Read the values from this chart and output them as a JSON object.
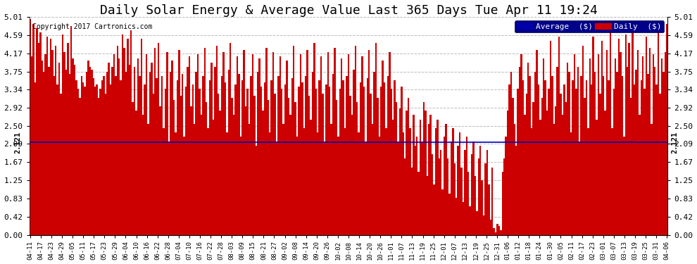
{
  "title": "Daily Solar Energy & Average Value Last 365 Days Tue Apr 11 19:24",
  "copyright": "Copyright 2017 Cartronics.com",
  "average_value": 2.121,
  "ymin": 0.0,
  "ymax": 5.01,
  "yticks": [
    0.0,
    0.42,
    0.83,
    1.25,
    1.67,
    2.09,
    2.5,
    2.92,
    3.34,
    3.75,
    4.17,
    4.59,
    5.01
  ],
  "bar_color": "#cc0000",
  "avg_line_color": "#0000bb",
  "background_color": "#ffffff",
  "plot_bg_color": "#ffffff",
  "grid_color": "#bbbbbb",
  "title_fontsize": 13,
  "avg_label": "2.121",
  "xtick_labels": [
    "04-11",
    "04-17",
    "04-23",
    "04-29",
    "05-05",
    "05-11",
    "05-17",
    "05-23",
    "05-29",
    "06-04",
    "06-10",
    "06-16",
    "06-22",
    "06-28",
    "07-04",
    "07-10",
    "07-16",
    "07-22",
    "07-28",
    "08-03",
    "08-09",
    "08-15",
    "08-21",
    "08-27",
    "09-02",
    "09-08",
    "09-14",
    "09-20",
    "09-26",
    "10-02",
    "10-08",
    "10-14",
    "10-20",
    "10-26",
    "11-01",
    "11-07",
    "11-13",
    "11-19",
    "11-25",
    "12-01",
    "12-07",
    "12-13",
    "12-19",
    "12-25",
    "12-31",
    "01-06",
    "01-12",
    "01-18",
    "01-24",
    "01-30",
    "02-05",
    "02-11",
    "02-17",
    "02-23",
    "03-01",
    "03-07",
    "03-13",
    "03-19",
    "03-25",
    "03-31",
    "04-06"
  ],
  "num_bars": 365,
  "bar_values_seed": 42,
  "bar_pattern": [
    4.95,
    4.1,
    4.85,
    3.5,
    4.75,
    4.4,
    4.65,
    4.0,
    3.75,
    4.15,
    4.55,
    3.85,
    4.5,
    4.25,
    3.65,
    4.35,
    3.45,
    3.95,
    3.25,
    4.6,
    4.2,
    3.8,
    4.4,
    3.7,
    4.8,
    4.05,
    3.9,
    3.55,
    3.35,
    3.15,
    3.65,
    3.5,
    3.4,
    3.75,
    4.0,
    3.85,
    3.8,
    3.6,
    3.4,
    3.45,
    3.15,
    3.35,
    3.55,
    3.65,
    3.25,
    3.75,
    3.95,
    3.45,
    3.85,
    4.15,
    3.65,
    4.35,
    4.05,
    3.55,
    4.6,
    4.3,
    3.75,
    4.5,
    3.9,
    4.7,
    3.05,
    3.85,
    2.85,
    4.05,
    3.65,
    4.5,
    2.75,
    3.45,
    4.15,
    2.55,
    3.75,
    3.95,
    3.25,
    4.3,
    3.6,
    4.4,
    2.95,
    3.65,
    2.45,
    3.35,
    4.2,
    2.15,
    3.75,
    4.0,
    3.1,
    2.35,
    3.55,
    4.25,
    3.2,
    3.7,
    2.25,
    3.4,
    3.85,
    4.1,
    2.95,
    3.45,
    2.55,
    3.75,
    4.15,
    3.35,
    2.75,
    3.65,
    4.3,
    3.05,
    2.45,
    3.55,
    3.95,
    2.65,
    3.85,
    4.35,
    3.25,
    2.85,
    3.65,
    4.2,
    3.5,
    2.35,
    3.8,
    4.4,
    3.15,
    2.75,
    3.45,
    4.1,
    3.7,
    2.25,
    3.55,
    4.25,
    2.95,
    3.35,
    2.55,
    3.65,
    4.15,
    3.2,
    2.05,
    3.75,
    4.05,
    3.4,
    2.85,
    3.5,
    4.3,
    3.1,
    2.35,
    3.55,
    4.2,
    3.25,
    2.15,
    3.65,
    4.1,
    3.35,
    2.55,
    3.45,
    4.0,
    3.15,
    2.75,
    3.6,
    4.35,
    3.05,
    2.25,
    3.4,
    4.15,
    3.5,
    2.45,
    3.65,
    4.25,
    3.2,
    2.65,
    3.75,
    4.4,
    3.35,
    2.35,
    3.55,
    4.1,
    3.25,
    2.15,
    3.45,
    4.2,
    3.4,
    2.55,
    3.7,
    4.3,
    3.1,
    2.25,
    3.35,
    4.05,
    3.55,
    2.45,
    3.65,
    4.15,
    3.2,
    2.75,
    3.8,
    4.35,
    3.05,
    2.35,
    3.5,
    4.1,
    3.4,
    2.15,
    3.6,
    4.25,
    3.25,
    2.55,
    3.75,
    4.4,
    3.15,
    2.25,
    3.4,
    4.0,
    3.5,
    2.45,
    3.65,
    4.2,
    3.35,
    2.65,
    3.55,
    3.05,
    2.15,
    2.9,
    3.4,
    2.35,
    1.75,
    2.85,
    3.15,
    2.45,
    1.55,
    2.75,
    2.05,
    2.25,
    1.45,
    2.65,
    2.15,
    3.05,
    2.85,
    1.35,
    2.55,
    2.75,
    1.85,
    1.15,
    2.45,
    2.65,
    1.75,
    1.95,
    1.05,
    2.25,
    2.55,
    1.75,
    0.95,
    2.15,
    2.45,
    1.65,
    0.85,
    2.05,
    2.35,
    1.55,
    0.75,
    1.95,
    2.25,
    1.45,
    0.65,
    1.85,
    2.15,
    1.35,
    0.55,
    1.75,
    2.05,
    1.25,
    0.45,
    1.65,
    1.95,
    1.15,
    0.35,
    1.55,
    0.15,
    0.05,
    0.25,
    0.2,
    0.1,
    1.45,
    1.75,
    2.25,
    2.85,
    3.45,
    3.75,
    3.15,
    2.55,
    2.05,
    3.35,
    3.85,
    4.15,
    3.55,
    2.75,
    3.25,
    3.95,
    3.65,
    2.45,
    3.05,
    3.75,
    4.25,
    3.45,
    2.65,
    3.15,
    4.05,
    3.55,
    2.85,
    3.35,
    4.45,
    3.65,
    2.55,
    2.95,
    3.85,
    4.55,
    3.25,
    2.75,
    3.45,
    3.05,
    3.95,
    3.75,
    2.35,
    3.55,
    4.15,
    3.35,
    3.85,
    2.15,
    3.65,
    4.35,
    3.15,
    3.55,
    2.45,
    4.05,
    3.45,
    4.55,
    3.75,
    2.65,
    4.15,
    3.25,
    4.45,
    3.65,
    2.85,
    4.25,
    3.55,
    4.75,
    2.45,
    3.35,
    4.05,
    3.75,
    4.5,
    4.2,
    3.65,
    2.25,
    4.6,
    3.85,
    4.4,
    3.15,
    4.65,
    3.45,
    3.8,
    4.25,
    2.75,
    3.55,
    4.1,
    3.35,
    4.55,
    3.7,
    4.3,
    2.55,
    4.15,
    3.85,
    3.45,
    4.65,
    3.25,
    4.05,
    3.75,
    4.2,
    4.85
  ]
}
